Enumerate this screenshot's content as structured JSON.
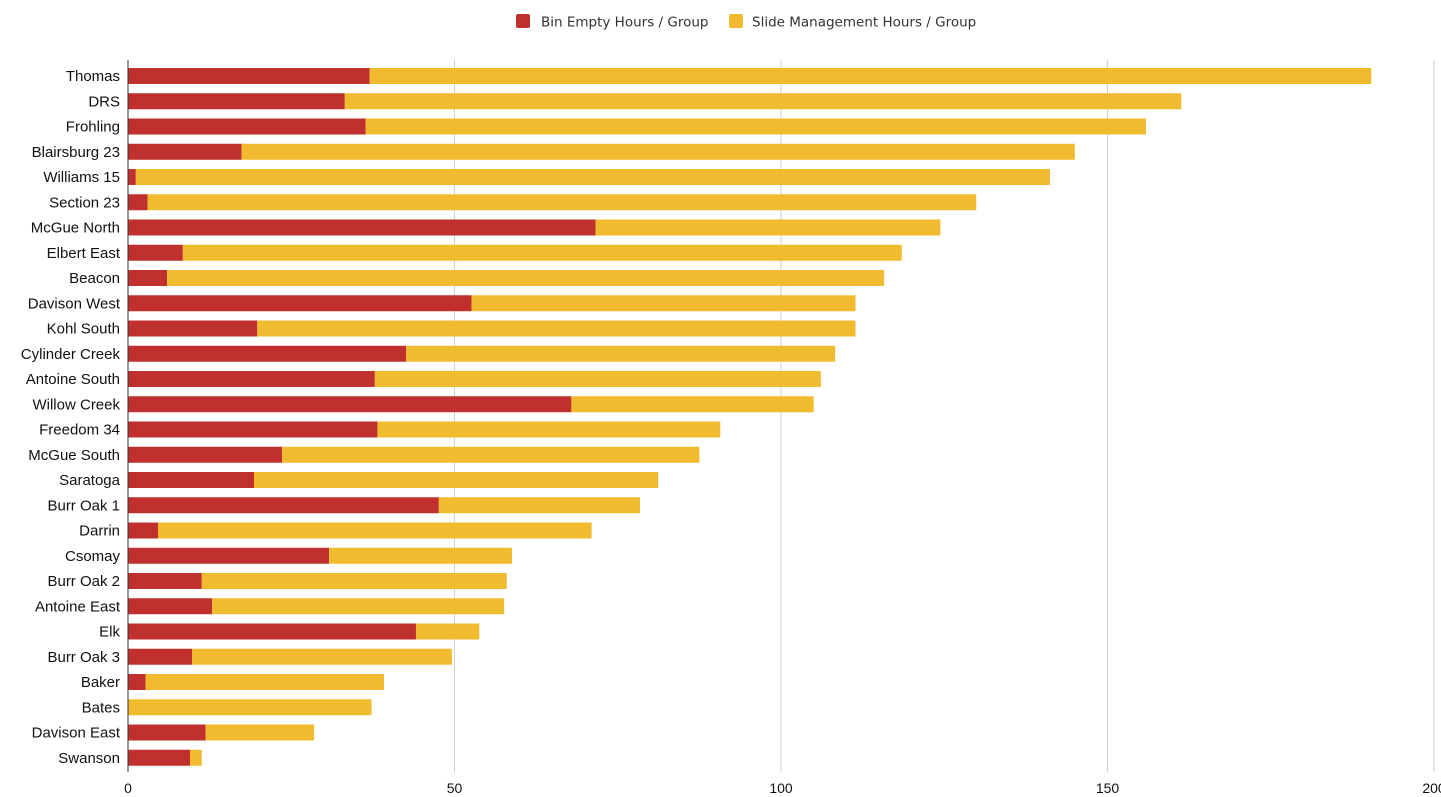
{
  "chart_data": {
    "type": "bar",
    "orientation": "horizontal",
    "stacked": true,
    "categories": [
      "Thomas",
      "DRS",
      "Frohling",
      "Blairsburg 23",
      "Williams 15",
      "Section 23",
      "McGue North",
      "Elbert East",
      "Beacon",
      "Davison West",
      "Kohl South",
      "Cylinder Creek",
      "Antoine South",
      "Willow Creek",
      "Freedom 34",
      "McGue South",
      "Saratoga",
      "Burr Oak 1",
      "Darrin",
      "Csomay",
      "Burr Oak 2",
      "Antoine East",
      "Elk",
      "Burr Oak 3",
      "Baker",
      "Bates",
      "Davison East",
      "Swanson"
    ],
    "series": [
      {
        "name": "Bin Empty Hours / Group",
        "color": "#c0302e",
        "values": [
          37,
          33.2,
          36.4,
          17.4,
          1.2,
          3,
          71.6,
          8.4,
          6,
          52.6,
          19.8,
          42.6,
          37.8,
          67.9,
          38.2,
          23.6,
          19.3,
          47.6,
          4.6,
          30.8,
          11.3,
          12.9,
          44.1,
          9.8,
          2.7,
          0,
          11.9,
          9.5
        ]
      },
      {
        "name": "Slide Management Hours / Group",
        "color": "#f0bb2e",
        "values": [
          153.4,
          128.1,
          119.5,
          127.6,
          140,
          126.9,
          52.8,
          110.1,
          109.8,
          58.8,
          91.6,
          65.7,
          68.3,
          37.1,
          52.5,
          63.9,
          61.9,
          30.8,
          66.4,
          28,
          46.7,
          44.7,
          9.7,
          39.8,
          36.5,
          37.3,
          16.6,
          1.8
        ]
      }
    ],
    "xlim": [
      0,
      200
    ],
    "xticks": [
      "0",
      "50",
      "100",
      "150",
      "200"
    ],
    "xlabel": "",
    "ylabel": "",
    "title": "",
    "grid": "vertical",
    "legend_position": "top-center"
  }
}
